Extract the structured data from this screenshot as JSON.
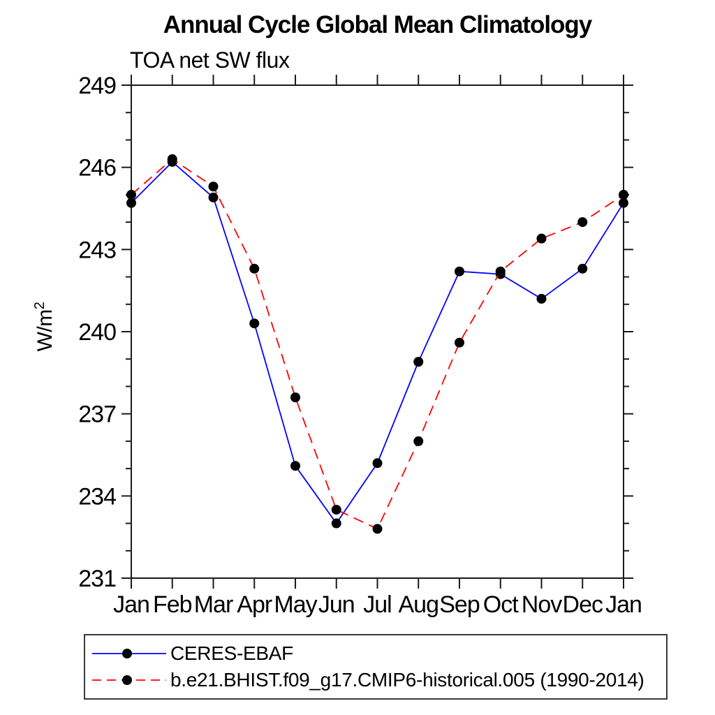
{
  "page": {
    "background": "#ffffff"
  },
  "chart_data": {
    "type": "line",
    "title": "Annual Cycle Global Mean Climatology",
    "subtitle": "TOA net SW flux",
    "ylabel": "W/m²",
    "ylabel_base": "W/m",
    "ylabel_sup": "2",
    "categories": [
      "Jan",
      "Feb",
      "Mar",
      "Apr",
      "May",
      "Jun",
      "Jul",
      "Aug",
      "Sep",
      "Oct",
      "Nov",
      "Dec",
      "Jan"
    ],
    "ylim": [
      231,
      249
    ],
    "ytick_major_step": 3,
    "ytick_minor_step": 1,
    "grid": false,
    "legend_position": "bottom-left-box",
    "axis_color": "#1a1a1a",
    "marker_shape": "filled-circle",
    "series": [
      {
        "name": "CERES-EBAF",
        "color": "#0000ff",
        "line_style": "solid",
        "marker_color": "#000000",
        "values": [
          244.7,
          246.2,
          244.9,
          240.3,
          235.1,
          233.0,
          235.2,
          238.9,
          242.2,
          242.1,
          241.2,
          242.3,
          244.7
        ]
      },
      {
        "name": "b.e21.BHIST.f09_g17.CMIP6-historical.005 (1990-2014)",
        "color": "#ff0000",
        "line_style": "dashed",
        "marker_color": "#000000",
        "values": [
          245.0,
          246.3,
          245.3,
          242.3,
          237.6,
          233.5,
          232.8,
          236.0,
          239.6,
          242.2,
          243.4,
          244.0,
          245.0
        ]
      }
    ]
  }
}
